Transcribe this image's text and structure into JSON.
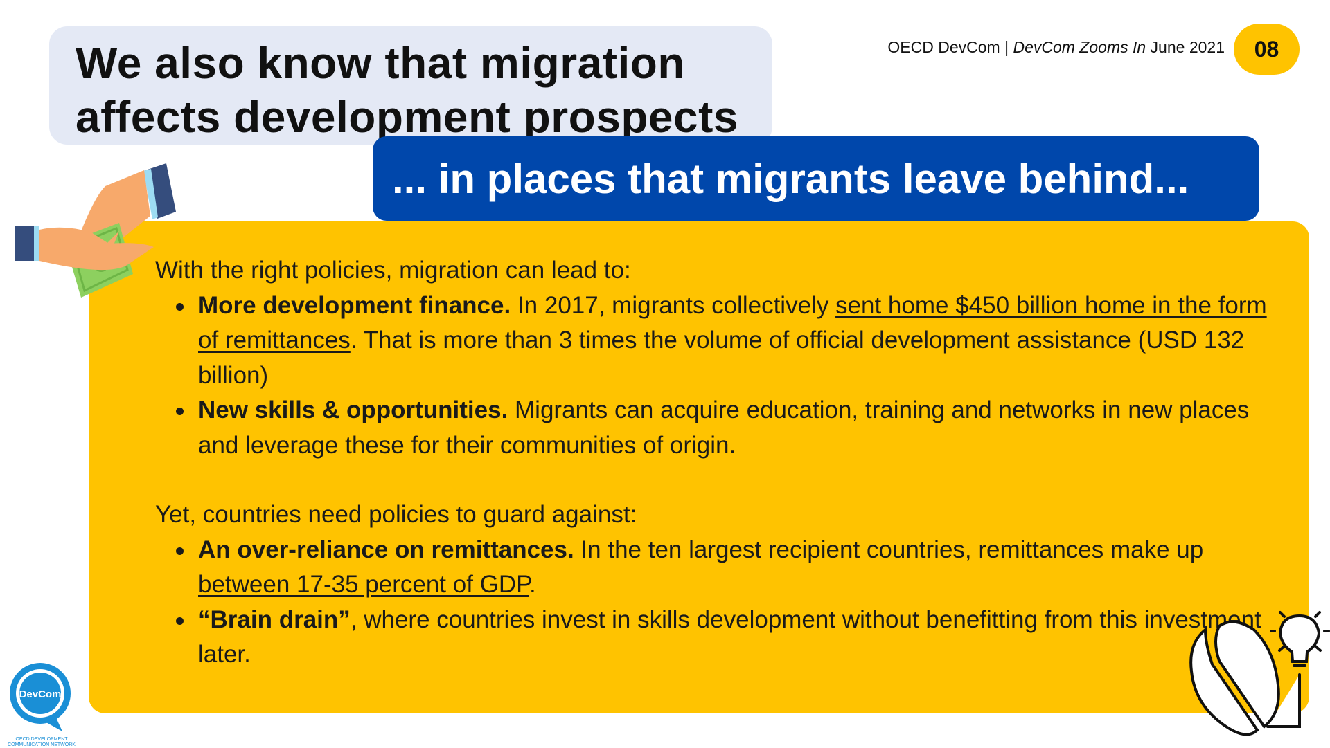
{
  "title": {
    "line1": "We also know that migration",
    "line2": "affects development prospects"
  },
  "header": {
    "org": "OECD DevCom | ",
    "series": "DevCom Zooms In",
    "date": " June 2021"
  },
  "page_number": "08",
  "subtitle": "... in places that migrants leave behind...",
  "body": {
    "intro1": "With the right policies, migration can lead to:",
    "bullet1": {
      "bold": "More development finance.",
      "text1": " In 2017, migrants collectively ",
      "link": "sent home $450 billion home in the form of remittances",
      "text2": ". That is more than 3 times the volume of official development assistance (USD 132 billion)"
    },
    "bullet2": {
      "bold": "New skills & opportunities.",
      "text1": " Migrants can acquire education, training and networks in new places and leverage these for their communities of origin."
    },
    "intro2": "Yet, countries need policies to guard against:",
    "bullet3": {
      "bold": "An over-reliance on remittances.",
      "text1": " In the ten largest recipient countries, remittances make up ",
      "link": "between 17-35 percent of GDP",
      "text2": "."
    },
    "bullet4": {
      "bold": "“Brain drain”",
      "text1": ", where countries invest in skills development without benefitting from this investment later."
    }
  },
  "logo": {
    "name": "DevCom",
    "caption1": "OECD DEVELOPMENT",
    "caption2": "COMMUNICATION NETWORK"
  },
  "icons": {
    "top_left": "hands-money-icon",
    "bottom_right": "brain-lightbulb-icon"
  },
  "colors": {
    "yellow": "#ffc300",
    "blue": "#0047ab",
    "title_bg": "#e4e9f5"
  }
}
